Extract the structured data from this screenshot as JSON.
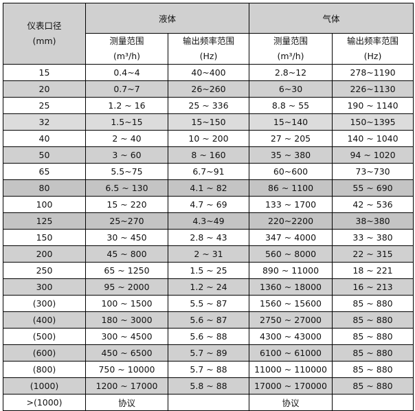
{
  "header": {
    "size_label": "仪表口径",
    "size_unit": "(mm)",
    "liquid": "液体",
    "gas": "气体",
    "range_label": "测量范围",
    "range_unit": "(m³/h)",
    "freq_label": "输出频率范围",
    "freq_unit": "(Hz)"
  },
  "rows": [
    {
      "size": "15",
      "lr": "0.4~4",
      "lf": "40~400",
      "gr": "2.8~12",
      "gf": "278~1190",
      "shade": "none"
    },
    {
      "size": "20",
      "lr": "0.7~7",
      "lf": "26~260",
      "gr": "6~30",
      "gf": "226~1130",
      "shade": "gray"
    },
    {
      "size": "25",
      "lr": "1.2 ~ 16",
      "lf": "25 ~ 336",
      "gr": "8.8 ~ 55",
      "gf": "190 ~ 1140",
      "shade": "none"
    },
    {
      "size": "32",
      "lr": "1.5~15",
      "lf": "15~150",
      "gr": "15~140",
      "gf": "150~1395",
      "shade": "light"
    },
    {
      "size": "40",
      "lr": "2 ~ 40",
      "lf": "10 ~ 200",
      "gr": "27 ~ 205",
      "gf": "140 ~ 1040",
      "shade": "none"
    },
    {
      "size": "50",
      "lr": "3 ~ 60",
      "lf": "8 ~ 160",
      "gr": "35 ~ 380",
      "gf": "94 ~ 1020",
      "shade": "gray"
    },
    {
      "size": "65",
      "lr": "5.5~75",
      "lf": "6.7~91",
      "gr": "60~600",
      "gf": "73~730",
      "shade": "none"
    },
    {
      "size": "80",
      "lr": "6.5 ~ 130",
      "lf": "4.1 ~ 82",
      "gr": "86 ~ 1100",
      "gf": "55 ~ 690",
      "shade": "dark"
    },
    {
      "size": "100",
      "lr": "15 ~ 220",
      "lf": "4.7 ~ 69",
      "gr": "133 ~ 1700",
      "gf": "42 ~ 536",
      "shade": "none"
    },
    {
      "size": "125",
      "lr": "25~270",
      "lf": "4.3~49",
      "gr": "220~2200",
      "gf": "38~380",
      "shade": "dark"
    },
    {
      "size": "150",
      "lr": "30 ~ 450",
      "lf": "2.8 ~ 43",
      "gr": "347 ~ 4000",
      "gf": "33 ~ 380",
      "shade": "none"
    },
    {
      "size": "200",
      "lr": "45 ~ 800",
      "lf": "2 ~ 31",
      "gr": "560 ~ 8000",
      "gf": "22 ~ 315",
      "shade": "gray"
    },
    {
      "size": "250",
      "lr": "65 ~ 1250",
      "lf": "1.5 ~ 25",
      "gr": "890 ~ 11000",
      "gf": "18 ~ 221",
      "shade": "none"
    },
    {
      "size": "300",
      "lr": "95 ~ 2000",
      "lf": "1.2 ~ 24",
      "gr": "1360 ~ 18000",
      "gf": "16 ~ 213",
      "shade": "gray"
    },
    {
      "size": "(300)",
      "lr": "100 ~ 1500",
      "lf": "5.5 ~ 87",
      "gr": "1560 ~ 15600",
      "gf": "85 ~ 880",
      "shade": "none"
    },
    {
      "size": "(400)",
      "lr": "180 ~ 3000",
      "lf": "5.6 ~ 87",
      "gr": "2750 ~ 27000",
      "gf": "85 ~ 880",
      "shade": "gray"
    },
    {
      "size": "(500)",
      "lr": "300 ~ 4500",
      "lf": "5.6 ~ 88",
      "gr": "4300 ~ 43000",
      "gf": "85 ~ 880",
      "shade": "none"
    },
    {
      "size": "(600)",
      "lr": "450 ~ 6500",
      "lf": "5.7 ~ 89",
      "gr": "6100 ~ 61000",
      "gf": "85 ~ 880",
      "shade": "gray"
    },
    {
      "size": "(800)",
      "lr": "750 ~ 10000",
      "lf": "5.7 ~ 88",
      "gr": "11000 ~ 110000",
      "gf": "85 ~ 880",
      "shade": "none"
    },
    {
      "size": "(1000)",
      "lr": "1200 ~ 17000",
      "lf": "5.8 ~ 88",
      "gr": "17000 ~ 170000",
      "gf": "85 ~ 880",
      "shade": "gray"
    },
    {
      "size": ">(1000)",
      "lr": "协议",
      "lf": "",
      "gr": "协议",
      "gf": "",
      "shade": "none"
    }
  ]
}
